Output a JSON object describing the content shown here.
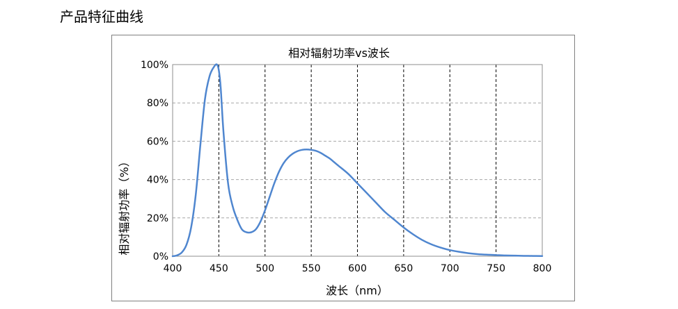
{
  "page": {
    "heading": "产品特征曲线"
  },
  "chart_data": {
    "type": "line",
    "title": "相对辐射功率vs波长",
    "xlabel": "波长（nm）",
    "ylabel": "相对辐射功率（%）",
    "xlim": [
      400,
      800
    ],
    "ylim": [
      0,
      100
    ],
    "x_ticks": [
      "400",
      "450",
      "500",
      "550",
      "600",
      "650",
      "700",
      "750",
      "800"
    ],
    "y_ticks": [
      "0%",
      "20%",
      "40%",
      "60%",
      "80%",
      "100%"
    ],
    "grid": true,
    "legend": "none",
    "line_color": "#4f86cf",
    "series": [
      {
        "x": [
          400,
          405,
          410,
          415,
          420,
          425,
          430,
          435,
          440,
          445,
          448,
          450,
          452,
          455,
          460,
          465,
          470,
          475,
          480,
          485,
          490,
          495,
          500,
          505,
          510,
          515,
          520,
          525,
          530,
          535,
          540,
          545,
          550,
          555,
          560,
          565,
          570,
          575,
          580,
          590,
          600,
          610,
          620,
          630,
          640,
          650,
          660,
          670,
          680,
          690,
          700,
          710,
          720,
          730,
          740,
          750,
          760,
          770,
          780,
          790,
          800
        ],
        "values": [
          0,
          0.5,
          2,
          6,
          15,
          32,
          58,
          82,
          94,
          99,
          100,
          97,
          88,
          65,
          38,
          26,
          19,
          14,
          12.5,
          12.5,
          14,
          18,
          24,
          31,
          38,
          44,
          48.5,
          51.5,
          53.5,
          54.8,
          55.5,
          55.7,
          55.5,
          55,
          54,
          52.5,
          51,
          49,
          47,
          43,
          38,
          33,
          28,
          23,
          19,
          15,
          11.5,
          8.5,
          6.2,
          4.5,
          3.2,
          2.3,
          1.6,
          1.1,
          0.8,
          0.6,
          0.4,
          0.3,
          0.2,
          0.15,
          0.1
        ]
      }
    ]
  }
}
